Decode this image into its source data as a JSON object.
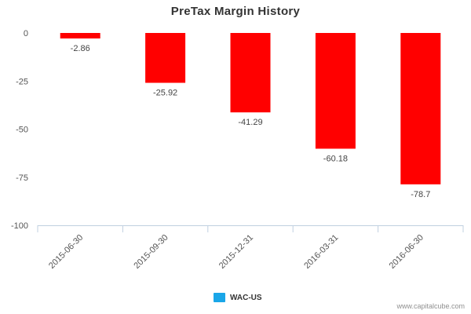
{
  "chart_data": {
    "type": "bar",
    "title": "PreTax Margin History",
    "categories": [
      "2015-06-30",
      "2015-09-30",
      "2015-12-31",
      "2016-03-31",
      "2016-06-30"
    ],
    "series": [
      {
        "name": "WAC-US",
        "values": [
          -2.86,
          -25.92,
          -41.29,
          -60.18,
          -78.7
        ],
        "data_labels": [
          "-2.86",
          "-25.92",
          "-41.29",
          "-60.18",
          "-78.7"
        ],
        "bar_color": "#ff0000",
        "legend_color": "#1aa6e8"
      }
    ],
    "ylim": [
      -100,
      0
    ],
    "yticks": [
      0,
      -25,
      -50,
      -75,
      -100
    ],
    "ytick_labels": [
      "0",
      "-25",
      "-50",
      "-75",
      "-100"
    ],
    "grid": false,
    "legend_position": "bottom-center",
    "xlabel": "",
    "ylabel": ""
  },
  "watermark": "www.capitalcube.com"
}
